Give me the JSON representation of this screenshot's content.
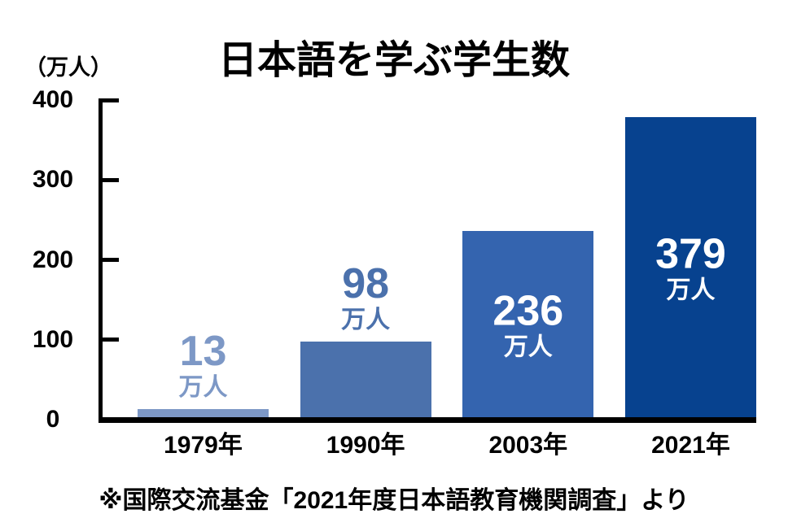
{
  "chart_data": {
    "type": "bar",
    "title": "日本語を学ぶ学生数",
    "unit_label": "（万人）",
    "ylabel": "（万人）",
    "xlabel": "",
    "ylim": [
      0,
      400
    ],
    "yticks": [
      0,
      100,
      200,
      300,
      400
    ],
    "grid": false,
    "legend_position": "none",
    "axis_color": "#000000",
    "background_color": "#ffffff",
    "categories": [
      "1979年",
      "1990年",
      "2003年",
      "2021年"
    ],
    "values": [
      13,
      98,
      236,
      379
    ],
    "value_unit": "万人",
    "bars": [
      {
        "category": "1979年",
        "value": 13,
        "label_number": "13",
        "label_unit": "万人",
        "color": "#7D98C6",
        "label_color": "#7D98C6",
        "label_position": "above"
      },
      {
        "category": "1990年",
        "value": 98,
        "label_number": "98",
        "label_unit": "万人",
        "color": "#4B71AC",
        "label_color": "#4B71AC",
        "label_position": "above"
      },
      {
        "category": "2003年",
        "value": 236,
        "label_number": "236",
        "label_unit": "万人",
        "color": "#3464AF",
        "label_color": "#FFFFFF",
        "label_position": "inside"
      },
      {
        "category": "2021年",
        "value": 379,
        "label_number": "379",
        "label_unit": "万人",
        "color": "#07428F",
        "label_color": "#FFFFFF",
        "label_position": "inside"
      }
    ],
    "source_note": "※国際交流基金「2021年度日本語教育機関調査」より"
  }
}
